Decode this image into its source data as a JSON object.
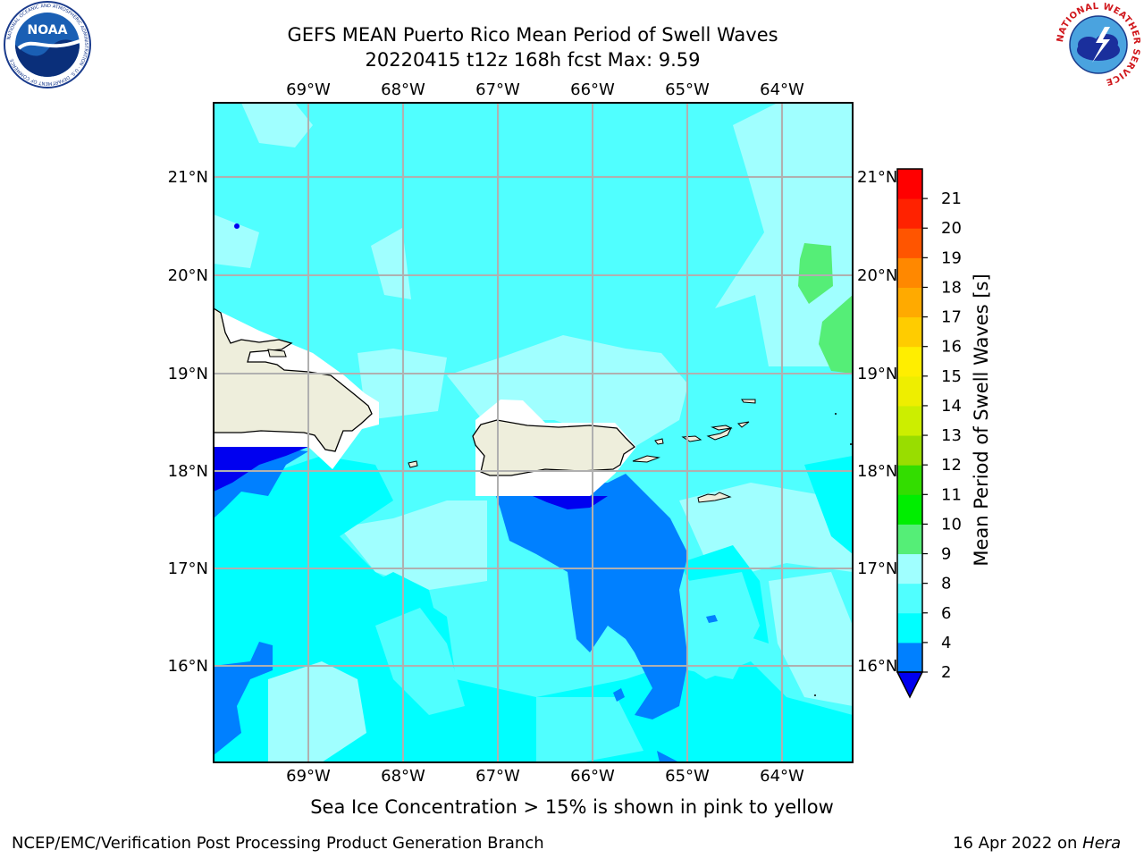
{
  "header": {
    "title_line1": "GEFS MEAN Puerto Rico Mean Period of Swell Waves",
    "title_line2": "20220415 t12z 168h fcst   Max: 9.59"
  },
  "logos": {
    "noaa_text": "NOAA",
    "noaa_ring": "NATIONAL OCEANIC AND ATMOSPHERIC ADMINISTRATION · U.S. DEPARTMENT OF COMMERCE",
    "nws_ring": "NATIONAL WEATHER SERVICE"
  },
  "map": {
    "lon_labels": [
      "69°W",
      "68°W",
      "67°W",
      "66°W",
      "65°W",
      "64°W"
    ],
    "lat_labels": [
      "21°N",
      "20°N",
      "19°N",
      "18°N",
      "17°N",
      "16°N"
    ],
    "field_colors": {
      "lt2": "#0000f0",
      "b2_4": "#0080ff",
      "b4_6": "#00ffff",
      "b6_8": "#50ffff",
      "b8_9": "#a0ffff",
      "b9_10": "#55ee77",
      "land": "#eeeedc",
      "mask": "#ffffff"
    }
  },
  "colorbar": {
    "label": "Mean Period of Swell Waves [s]",
    "ticks": [
      "2",
      "4",
      "6",
      "8",
      "9",
      "10",
      "11",
      "12",
      "13",
      "14",
      "15",
      "16",
      "17",
      "18",
      "19",
      "20",
      "21"
    ],
    "extend_min_color": "#0000f0",
    "colors": [
      "#0080ff",
      "#00ffff",
      "#50ffff",
      "#a0ffff",
      "#55ee77",
      "#00ee00",
      "#33dd00",
      "#99dd00",
      "#ccee00",
      "#eeee00",
      "#ffee00",
      "#ffcc00",
      "#ffaa00",
      "#ff8800",
      "#ff5500",
      "#ff2200",
      "#ff0000"
    ]
  },
  "footer": {
    "ice_note": "Sea Ice Concentration > 15% is shown in pink to yellow",
    "credit": "NCEP/EMC/Verification Post Processing Product Generation Branch",
    "date_prefix": "16 Apr 2022 on ",
    "date_host": "Hera"
  }
}
